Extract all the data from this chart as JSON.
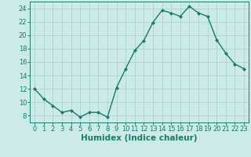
{
  "x": [
    0,
    1,
    2,
    3,
    4,
    5,
    6,
    7,
    8,
    9,
    10,
    11,
    12,
    13,
    14,
    15,
    16,
    17,
    18,
    19,
    20,
    21,
    22,
    23
  ],
  "y": [
    12,
    10.5,
    9.5,
    8.5,
    8.8,
    7.8,
    8.5,
    8.5,
    7.8,
    12.2,
    15.0,
    17.7,
    19.2,
    21.9,
    23.7,
    23.3,
    22.8,
    24.3,
    23.3,
    22.8,
    19.3,
    17.3,
    15.7,
    15.0
  ],
  "line_color": "#1a7a6e",
  "marker": "D",
  "marker_size": 2,
  "bg_color": "#cceae7",
  "grid_color": "#aad4d0",
  "xlabel": "Humidex (Indice chaleur)",
  "xlim": [
    -0.5,
    23.5
  ],
  "ylim": [
    7,
    25
  ],
  "yticks": [
    8,
    10,
    12,
    14,
    16,
    18,
    20,
    22,
    24
  ],
  "xticks": [
    0,
    1,
    2,
    3,
    4,
    5,
    6,
    7,
    8,
    9,
    10,
    11,
    12,
    13,
    14,
    15,
    16,
    17,
    18,
    19,
    20,
    21,
    22,
    23
  ],
  "tick_fontsize": 6,
  "xlabel_fontsize": 7.5
}
